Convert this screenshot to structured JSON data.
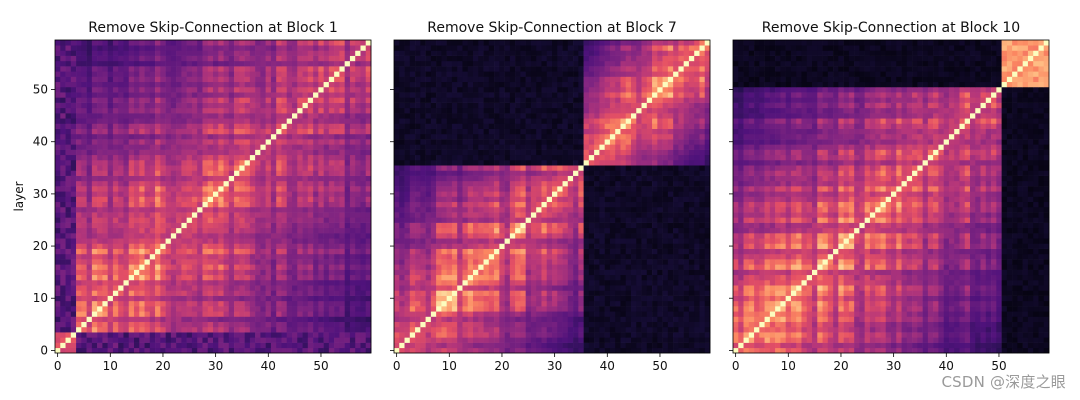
{
  "chart_data": [
    {
      "type": "heatmap",
      "title": "Remove Skip-Connection at Block 1",
      "ylabel": "layer",
      "size": 60,
      "x_ticks": [
        0,
        10,
        20,
        30,
        40,
        50
      ],
      "y_ticks": [
        0,
        10,
        20,
        30,
        40,
        50
      ],
      "block_boundaries": [
        4
      ],
      "colormap": "magma"
    },
    {
      "type": "heatmap",
      "title": "Remove Skip-Connection at Block 7",
      "ylabel": "",
      "size": 60,
      "x_ticks": [
        0,
        10,
        20,
        30,
        40,
        50
      ],
      "y_ticks": [
        0,
        10,
        20,
        30,
        40,
        50
      ],
      "block_boundaries": [
        36
      ],
      "colormap": "magma"
    },
    {
      "type": "heatmap",
      "title": "Remove Skip-Connection at Block 10",
      "ylabel": "",
      "size": 60,
      "x_ticks": [
        0,
        10,
        20,
        30,
        40,
        50
      ],
      "y_ticks": [
        0,
        10,
        20,
        30,
        40,
        50
      ],
      "block_boundaries": [
        51
      ],
      "colormap": "magma"
    }
  ],
  "watermark": "CSDN @深度之眼"
}
